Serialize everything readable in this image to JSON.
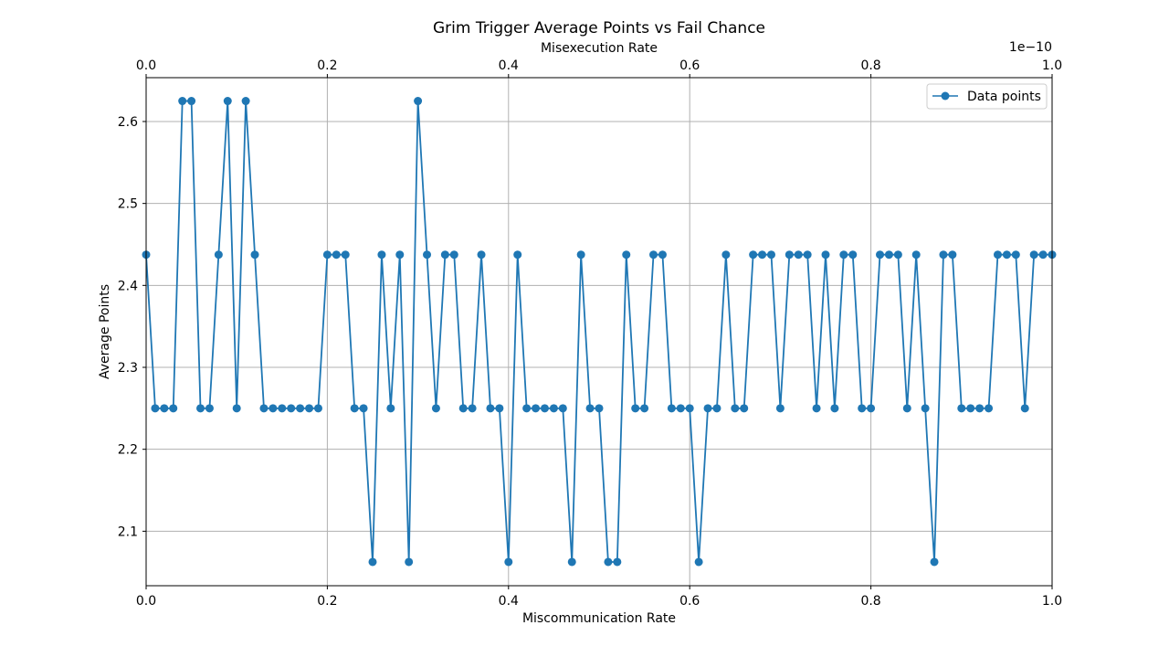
{
  "chart_data": {
    "type": "line",
    "title": "Grim Trigger Average Points vs Fail Chance",
    "xlabel": "Miscommunication Rate",
    "ylabel": "Average Points",
    "xlim": [
      0,
      1
    ],
    "ylim": [
      2.0335,
      2.6535
    ],
    "xticks": [
      "0.0",
      "0.2",
      "0.4",
      "0.6",
      "0.8",
      "1.0"
    ],
    "yticks": [
      "2.1",
      "2.2",
      "2.3",
      "2.4",
      "2.5",
      "2.6"
    ],
    "top_axis": {
      "label": "Misexecution Rate",
      "ticks": [
        "0.0",
        "0.2",
        "0.4",
        "0.6",
        "0.8",
        "1.0"
      ],
      "offset_text": "1e−10"
    },
    "grid": true,
    "legend_position": "top-right",
    "color": "#1f77b4",
    "series": [
      {
        "name": "Data points",
        "x": [
          0.0,
          0.01,
          0.02,
          0.03,
          0.04,
          0.05,
          0.06,
          0.07,
          0.08,
          0.09,
          0.1,
          0.11,
          0.12,
          0.13,
          0.14,
          0.15,
          0.16,
          0.17,
          0.18,
          0.19,
          0.2,
          0.21,
          0.22,
          0.23,
          0.24,
          0.25,
          0.26,
          0.27,
          0.28,
          0.29,
          0.3,
          0.31,
          0.32,
          0.33,
          0.34,
          0.35,
          0.36,
          0.37,
          0.38,
          0.39,
          0.4,
          0.41,
          0.42,
          0.43,
          0.44,
          0.45,
          0.46,
          0.47,
          0.48,
          0.49,
          0.5,
          0.51,
          0.52,
          0.53,
          0.54,
          0.55,
          0.56,
          0.57,
          0.58,
          0.59,
          0.6,
          0.61,
          0.62,
          0.63,
          0.64,
          0.65,
          0.66,
          0.67,
          0.68,
          0.69,
          0.7,
          0.71,
          0.72,
          0.73,
          0.74,
          0.75,
          0.76,
          0.77,
          0.78,
          0.79,
          0.8,
          0.81,
          0.82,
          0.83,
          0.84,
          0.85,
          0.86,
          0.87,
          0.88,
          0.89,
          0.9,
          0.91,
          0.92,
          0.93,
          0.94,
          0.95,
          0.96,
          0.97,
          0.98,
          0.99,
          1.0
        ],
        "y": [
          2.4375,
          2.25,
          2.25,
          2.25,
          2.625,
          2.625,
          2.25,
          2.25,
          2.4375,
          2.625,
          2.25,
          2.625,
          2.4375,
          2.25,
          2.25,
          2.25,
          2.25,
          2.25,
          2.25,
          2.25,
          2.4375,
          2.4375,
          2.4375,
          2.25,
          2.25,
          2.0625,
          2.4375,
          2.25,
          2.4375,
          2.0625,
          2.625,
          2.4375,
          2.25,
          2.4375,
          2.4375,
          2.25,
          2.25,
          2.4375,
          2.25,
          2.25,
          2.0625,
          2.4375,
          2.25,
          2.25,
          2.25,
          2.25,
          2.25,
          2.0625,
          2.4375,
          2.25,
          2.25,
          2.0625,
          2.0625,
          2.4375,
          2.25,
          2.25,
          2.4375,
          2.4375,
          2.25,
          2.25,
          2.25,
          2.0625,
          2.25,
          2.25,
          2.4375,
          2.25,
          2.25,
          2.4375,
          2.4375,
          2.4375,
          2.25,
          2.4375,
          2.4375,
          2.4375,
          2.25,
          2.4375,
          2.25,
          2.4375,
          2.4375,
          2.25,
          2.25,
          2.4375,
          2.4375,
          2.4375,
          2.25,
          2.4375,
          2.25,
          2.0625,
          2.4375,
          2.4375,
          2.25,
          2.25,
          2.25,
          2.25,
          2.4375,
          2.4375,
          2.4375,
          2.25,
          2.4375,
          2.4375,
          2.4375
        ]
      }
    ]
  }
}
